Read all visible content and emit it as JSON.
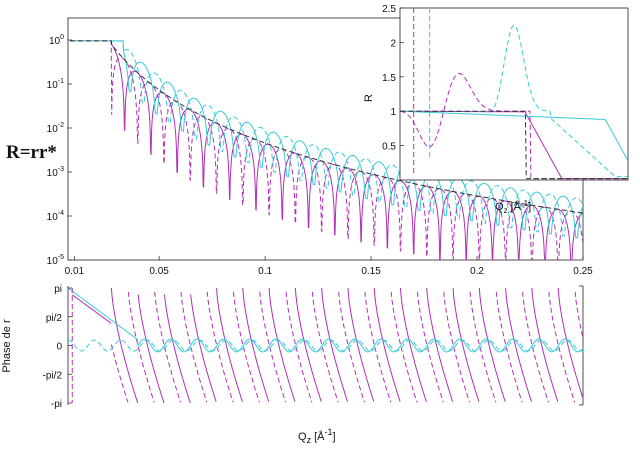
{
  "figure_label": "R=rr*",
  "colors": {
    "magenta": "#b02fb5",
    "cyan": "#35cbd6",
    "black": "#333333"
  },
  "chart_data": [
    {
      "type": "line",
      "panel": "reflectivity-log",
      "xlim": [
        0.007,
        0.25
      ],
      "ylim_exponent": [
        -5,
        0.5
      ],
      "yscale": "log",
      "x_ticks": [
        "0.01",
        "0.05",
        "0.1",
        "0.15",
        "0.2",
        "0.25"
      ],
      "x_tick_values": [
        0.01,
        0.05,
        0.1,
        0.15,
        0.2,
        0.25
      ],
      "y_ticks": [
        {
          "base": "10",
          "exp": "0",
          "value": 0
        },
        {
          "base": "10",
          "exp": "-1",
          "value": -1
        },
        {
          "base": "10",
          "exp": "-2",
          "value": -2
        },
        {
          "base": "10",
          "exp": "-3",
          "value": -3
        },
        {
          "base": "10",
          "exp": "-4",
          "value": -4
        },
        {
          "base": "10",
          "exp": "-5",
          "value": -5
        }
      ],
      "series": [
        {
          "style": "magenta-solid",
          "qc": 0.0275,
          "period": 0.0124,
          "phase": 0.0
        },
        {
          "style": "magenta-dashed",
          "qc": 0.0275,
          "period": 0.0124,
          "phase": 0.0062
        },
        {
          "style": "cyan-solid",
          "qc": 0.033,
          "period": 0.0124,
          "phase": 0.003
        },
        {
          "style": "cyan-dashed",
          "qc": 0.033,
          "period": 0.0124,
          "phase": 0.0092
        },
        {
          "style": "black-dashed",
          "qc": 0.0275,
          "period": 0,
          "phase": 0
        }
      ]
    },
    {
      "type": "line",
      "panel": "reflectivity-inset",
      "ylabel": "R",
      "xlabel": {
        "base": "Q",
        "sub": "z",
        "unit": " [Å",
        "unit_exp": "-1",
        "unit_end": "]"
      },
      "xlim": [
        0,
        0.05
      ],
      "ylim": [
        0,
        2.5
      ],
      "y_ticks": [
        "0.5",
        "1",
        "1.5",
        "2",
        "2.5"
      ],
      "y_tick_values": [
        0.5,
        1,
        1.5,
        2,
        2.5
      ]
    },
    {
      "type": "line",
      "panel": "phase",
      "ylabel": "Phase de r",
      "xlabel": {
        "base": "Q",
        "sub": "z",
        "unit": " [Å",
        "unit_exp": "-1",
        "unit_end": "]"
      },
      "xlim": [
        0.007,
        0.25
      ],
      "ylim": [
        -3.1416,
        3.1416
      ],
      "y_ticks": [
        "pi",
        "pi/2",
        "0",
        "-pi/2",
        "-pi"
      ],
      "y_tick_values": [
        3.1416,
        1.5708,
        0,
        -1.5708,
        -3.1416
      ]
    }
  ]
}
